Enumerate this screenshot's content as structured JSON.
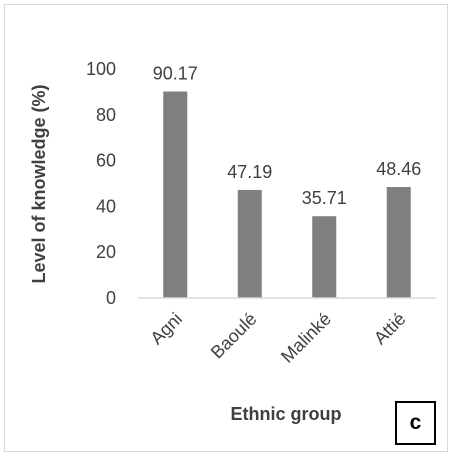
{
  "chart_data": {
    "type": "bar",
    "categories": [
      "Agni",
      "Baoulé",
      "Malinké",
      "Attié"
    ],
    "values": [
      90.17,
      47.19,
      35.71,
      48.46
    ],
    "data_labels": [
      "90.17",
      "47.19",
      "35.71",
      "48.46"
    ],
    "xlabel": "Ethnic group",
    "ylabel": "Level of knowledge (%)",
    "ylim": [
      0,
      100
    ],
    "yticks": [
      0,
      20,
      40,
      60,
      80,
      100
    ],
    "grid": false,
    "legend": "none",
    "bar_color": "#7f7f7f",
    "axis_color": "#d9d9d9",
    "text_color": "#404040"
  },
  "panel_label": "c"
}
